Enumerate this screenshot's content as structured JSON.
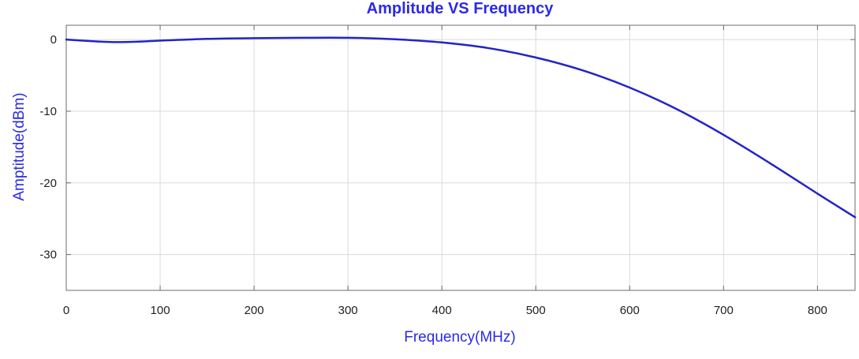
{
  "colors": {
    "line": "#2323c8",
    "title": "#2a2ae6",
    "axis_label": "#2a2ae6",
    "grid": "#d9d9d9",
    "frame": "#6b6b6b",
    "background": "#ffffff"
  },
  "chart_data": {
    "type": "line",
    "title": "Amplitude VS Frequency",
    "xlabel": "Frequency(MHz)",
    "ylabel": "Amptitude(dBm)",
    "xlim": [
      0,
      840
    ],
    "ylim": [
      -35,
      2
    ],
    "x_ticks": [
      0,
      100,
      200,
      300,
      400,
      500,
      600,
      700,
      800
    ],
    "x_tick_labels": [
      "0",
      "100",
      "200",
      "300",
      "400",
      "500",
      "600",
      "700",
      "800"
    ],
    "y_ticks": [
      0,
      -10,
      -20,
      -30
    ],
    "y_tick_labels": [
      "0",
      "-10",
      "-20",
      "-30"
    ],
    "grid": true,
    "legend": "none",
    "series": [
      {
        "x": [
          0,
          25,
          50,
          75,
          100,
          150,
          200,
          250,
          300,
          350,
          400,
          450,
          500,
          550,
          600,
          650,
          700,
          750,
          800,
          840
        ],
        "y": [
          0,
          -0.2,
          -0.35,
          -0.3,
          -0.15,
          0.1,
          0.2,
          0.25,
          0.25,
          0.05,
          -0.4,
          -1.2,
          -2.5,
          -4.3,
          -6.7,
          -9.7,
          -13.3,
          -17.3,
          -21.5,
          -24.8
        ]
      }
    ]
  }
}
